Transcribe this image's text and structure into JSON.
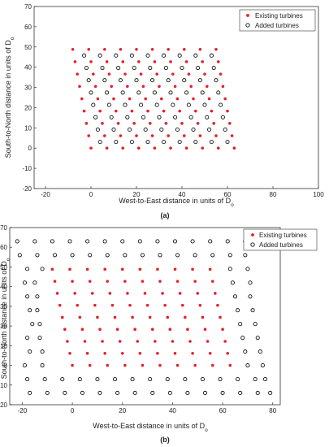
{
  "chart_data": [
    {
      "type": "scatter",
      "panel_caption": "(a)",
      "xlabel": "West-to-East distance in units of D",
      "xlabel_sub": "o",
      "ylabel": "South-to-North distance in units of D",
      "ylabel_sub": "o",
      "xlim": [
        -25,
        100
      ],
      "ylim": [
        -20,
        70
      ],
      "xticks": [
        -20,
        0,
        20,
        40,
        60,
        80,
        100
      ],
      "yticks": [
        -20,
        -10,
        0,
        10,
        20,
        30,
        40,
        50,
        60,
        70
      ],
      "legend_position": "top-right",
      "grid": false,
      "series": [
        {
          "name": "Existing turbines",
          "marker": "filled-dot",
          "color": "#e8202a",
          "rows": [
            {
              "y": 0,
              "x": [
                0,
                7,
                14,
                21,
                28,
                35,
                42,
                49,
                56,
                63
              ]
            },
            {
              "y": 6.1,
              "x": [
                -1,
                6,
                13,
                20,
                27,
                34,
                41,
                48,
                55,
                62
              ]
            },
            {
              "y": 12.2,
              "x": [
                -2,
                5,
                12,
                19,
                26,
                33,
                40,
                47,
                54,
                61
              ]
            },
            {
              "y": 18.3,
              "x": [
                -3,
                4,
                11,
                18,
                25,
                32,
                39,
                46,
                53,
                60
              ]
            },
            {
              "y": 24.4,
              "x": [
                -4,
                3,
                10,
                17,
                24,
                31,
                38,
                45,
                52,
                59
              ]
            },
            {
              "y": 30.5,
              "x": [
                -5,
                2,
                9,
                16,
                23,
                30,
                37,
                44,
                51,
                58
              ]
            },
            {
              "y": 36.6,
              "x": [
                -6,
                1,
                8,
                15,
                22,
                29,
                36,
                43,
                50,
                57
              ]
            },
            {
              "y": 42.7,
              "x": [
                -7,
                0,
                7,
                14,
                21,
                28,
                35,
                42,
                49,
                56
              ]
            },
            {
              "y": 48.8,
              "x": [
                -8,
                -1,
                6,
                13,
                20,
                27,
                34,
                41,
                48,
                55
              ]
            }
          ]
        },
        {
          "name": "Added turbines",
          "marker": "open-circle",
          "color": "#111111",
          "rows": [
            {
              "y": 3.05,
              "x": [
                4,
                11,
                18,
                25,
                32,
                39,
                46,
                53,
                60
              ]
            },
            {
              "y": 9.15,
              "x": [
                3,
                10,
                17,
                24,
                31,
                38,
                45,
                52,
                59
              ]
            },
            {
              "y": 15.25,
              "x": [
                2,
                9,
                16,
                23,
                30,
                37,
                44,
                51,
                58
              ]
            },
            {
              "y": 21.35,
              "x": [
                1,
                8,
                15,
                22,
                29,
                36,
                43,
                50,
                57
              ]
            },
            {
              "y": 27.45,
              "x": [
                0,
                7,
                14,
                21,
                28,
                35,
                42,
                49,
                56
              ]
            },
            {
              "y": 33.55,
              "x": [
                -1,
                6,
                13,
                20,
                27,
                34,
                41,
                48,
                55
              ]
            },
            {
              "y": 39.65,
              "x": [
                -2,
                5,
                12,
                19,
                26,
                33,
                40,
                47,
                54
              ]
            },
            {
              "y": 45.75,
              "x": [
                -3,
                4,
                11,
                18,
                25,
                32,
                39,
                46,
                53
              ]
            }
          ]
        }
      ]
    },
    {
      "type": "scatter",
      "panel_caption": "(b)",
      "xlabel": "West-to-East distance in units of D",
      "xlabel_sub": "o",
      "ylabel": "South-to-North distance in units of D",
      "ylabel_sub": "o",
      "xlim": [
        -25,
        83
      ],
      "ylim": [
        -20,
        70
      ],
      "xticks": [
        -20,
        0,
        20,
        40,
        60,
        80
      ],
      "yticks": [
        -20,
        -10,
        0,
        10,
        20,
        30,
        40,
        50,
        60,
        70
      ],
      "legend_position": "top-right",
      "grid": false,
      "series": [
        {
          "name": "Existing turbines",
          "marker": "filled-dot",
          "color": "#e8202a",
          "rows": [
            {
              "y": 0,
              "x": [
                0,
                7,
                14,
                21,
                28,
                35,
                42,
                49,
                56,
                63
              ]
            },
            {
              "y": 6.1,
              "x": [
                -1,
                6,
                13,
                20,
                27,
                34,
                41,
                48,
                55,
                62
              ]
            },
            {
              "y": 12.2,
              "x": [
                -2,
                5,
                12,
                19,
                26,
                33,
                40,
                47,
                54,
                61
              ]
            },
            {
              "y": 18.3,
              "x": [
                -3,
                4,
                11,
                18,
                25,
                32,
                39,
                46,
                53,
                60
              ]
            },
            {
              "y": 24.4,
              "x": [
                -4,
                3,
                10,
                17,
                24,
                31,
                38,
                45,
                52,
                59
              ]
            },
            {
              "y": 30.5,
              "x": [
                -5,
                2,
                9,
                16,
                23,
                30,
                37,
                44,
                51,
                58
              ]
            },
            {
              "y": 36.6,
              "x": [
                -6,
                1,
                8,
                15,
                22,
                29,
                36,
                43,
                50,
                57
              ]
            },
            {
              "y": 42.7,
              "x": [
                -7,
                0,
                7,
                14,
                21,
                28,
                35,
                42,
                49,
                56
              ]
            },
            {
              "y": 48.8,
              "x": [
                -8,
                -1,
                6,
                13,
                20,
                27,
                34,
                41,
                48,
                55
              ]
            }
          ]
        },
        {
          "name": "Added turbines",
          "marker": "open-circle",
          "color": "#111111",
          "rows": [
            {
              "y": -14,
              "x": [
                -17,
                -10,
                -3,
                4,
                11,
                18,
                25,
                32,
                39,
                46,
                53,
                60,
                67,
                74,
                79
              ]
            },
            {
              "y": -7,
              "x": [
                -18,
                -11,
                -4,
                3,
                10,
                17,
                24,
                31,
                38,
                45,
                52,
                59,
                66,
                73,
                77
              ]
            },
            {
              "y": 0,
              "x": [
                -19,
                -12,
                70,
                76
              ]
            },
            {
              "y": 7,
              "x": [
                -17,
                -12,
                69,
                75
              ]
            },
            {
              "y": 14,
              "x": [
                -18,
                -13,
                68,
                74
              ]
            },
            {
              "y": 21,
              "x": [
                -16,
                -13,
                67,
                73
              ]
            },
            {
              "y": 28,
              "x": [
                -17,
                -14,
                66,
                72
              ]
            },
            {
              "y": 35,
              "x": [
                -18,
                -14,
                65,
                71
              ]
            },
            {
              "y": 42,
              "x": [
                -19,
                -15,
                64,
                71
              ]
            },
            {
              "y": 49,
              "x": [
                -18,
                -12,
                63,
                70
              ]
            },
            {
              "y": 56,
              "x": [
                -21,
                -14,
                -7,
                0,
                7,
                14,
                21,
                28,
                35,
                42,
                49,
                56,
                63,
                69
              ]
            },
            {
              "y": 63,
              "x": [
                -22,
                -15,
                -8,
                -1,
                6,
                13,
                20,
                27,
                34,
                41,
                48,
                55,
                62,
                69
              ]
            }
          ]
        }
      ]
    }
  ]
}
